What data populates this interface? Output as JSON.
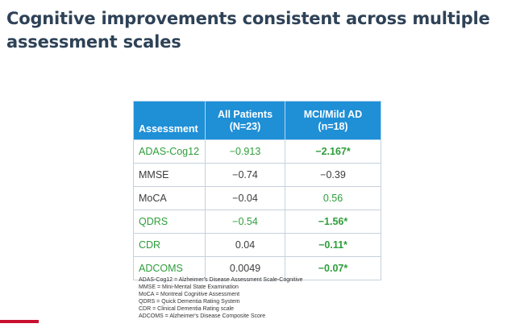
{
  "slide": {
    "title": "Cognitive improvements consistent across multiple assessment scales",
    "accent_color": "#c8102e",
    "title_color": "#2e4257"
  },
  "table": {
    "header_color": "#1f8fd6",
    "significant_color": "#2e9e3a",
    "headers": {
      "assessment": "Assessment",
      "all_patients": "All Patients\n(N=23)",
      "mci_mild_ad": "MCI/Mild AD\n(n=18)"
    },
    "rows": [
      {
        "assessment": "ADAS-Cog12",
        "all": "−0.913",
        "mci": "−2.167*"
      },
      {
        "assessment": "MMSE",
        "all": "−0.74",
        "mci": "−0.39"
      },
      {
        "assessment": "MoCA",
        "all": "−0.04",
        "mci": "0.56"
      },
      {
        "assessment": "QDRS",
        "all": "−0.54",
        "mci": "−1.56*"
      },
      {
        "assessment": "CDR",
        "all": "0.04",
        "mci": "−0.11*"
      },
      {
        "assessment": "ADCOMS",
        "all": "0.0049",
        "mci": "−0.07*"
      }
    ]
  },
  "footnotes": [
    "ADAS-Cog12 = Alzheimer's Disease Assessment Scale-Cognitive",
    "MMSE = Mini-Mental State Examination",
    "MoCA = Montreal Cognitive Assessment",
    "QDRS = Quick Dementia Rating System",
    "CDR = Clinical Dementia Rating scale",
    "ADCOMS = Alzheimer's Disease Composite Score"
  ]
}
